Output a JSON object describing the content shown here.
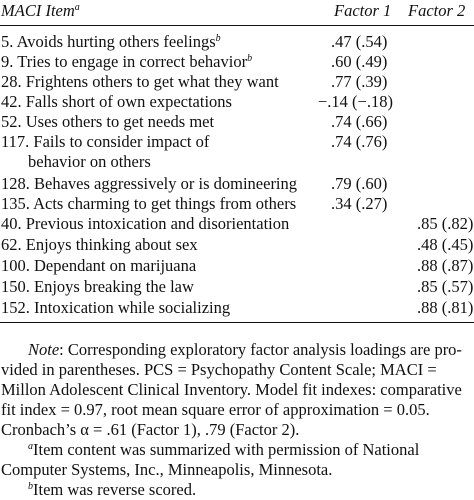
{
  "table": {
    "headers": {
      "item": "MACI Item",
      "item_sup": "a",
      "factor1": "Factor 1",
      "factor2": "Factor 2"
    },
    "rows": [
      {
        "item": "5. Avoids hurting others feelings",
        "sup": "b",
        "f1": ".47 (.54)",
        "f2": ""
      },
      {
        "item": "9. Tries to engage in correct behavior",
        "sup": "b",
        "f1": ".60 (.49)",
        "f2": ""
      },
      {
        "item": "28. Frightens others to get what they want",
        "sup": "",
        "f1": ".77 (.39)",
        "f2": ""
      },
      {
        "item": "42. Falls short of own expectations",
        "sup": "",
        "f1": "−.14 (−.18)",
        "f2": ""
      },
      {
        "item": "52. Uses others to get needs met",
        "sup": "",
        "f1": ".74 (.66)",
        "f2": ""
      },
      {
        "item": "117. Fails to consider impact of",
        "continuation": "behavior on others",
        "sup": "",
        "f1": ".74 (.76)",
        "f2": ""
      },
      {
        "item": "128. Behaves aggressively or is domineering",
        "sup": "",
        "f1": ".79 (.60)",
        "f2": ""
      },
      {
        "item": "135. Acts charming to get things from others",
        "sup": "",
        "f1": ".34 (.27)",
        "f2": ""
      },
      {
        "item": "40. Previous intoxication and disorientation",
        "sup": "",
        "f1": "",
        "f2": ".85 (.82)"
      },
      {
        "item": "62. Enjoys thinking about sex",
        "sup": "",
        "f1": "",
        "f2": ".48 (.45)"
      },
      {
        "item": "100. Dependant on marijuana",
        "sup": "",
        "f1": "",
        "f2": ".88 (.87)"
      },
      {
        "item": "150. Enjoys breaking the law",
        "sup": "",
        "f1": "",
        "f2": ".85 (.57)"
      },
      {
        "item": "152. Intoxication while socializing",
        "sup": "",
        "f1": "",
        "f2": ".88 (.81)"
      }
    ]
  },
  "notes": {
    "note_label": "Note",
    "note_lines": [
      ": Corresponding exploratory factor analysis loadings are pro-",
      "vided in parentheses. PCS = Psychopathy Content Scale; MACI =",
      "Millon Adolescent Clinical Inventory. Model fit indexes: comparative",
      "fit index = 0.97, root mean square error of approximation = 0.05.",
      "Cronbach’s α = .61 (Factor 1), .79 (Factor 2)."
    ],
    "footnote_a_sup": "a",
    "footnote_a_lines": [
      "Item content was summarized with permission of National",
      "Computer Systems, Inc., Minneapolis, Minnesota."
    ],
    "footnote_b_sup": "b",
    "footnote_b_text": "Item was reverse scored."
  }
}
